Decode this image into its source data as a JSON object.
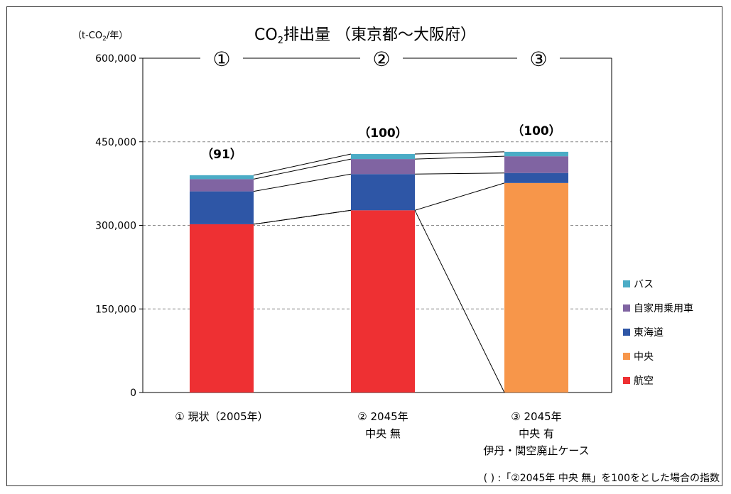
{
  "chart_data": {
    "type": "bar",
    "stacked": true,
    "title_prefix": "CO",
    "title_sub": "2",
    "title_suffix": "排出量 （東京都～大阪府）",
    "unit_prefix": "（t-CO",
    "unit_sub": "2",
    "unit_suffix": "/年）",
    "ylim": [
      0,
      600000
    ],
    "y_ticks": [
      0,
      150000,
      300000,
      450000,
      600000
    ],
    "y_tick_labels": [
      "0",
      "150,000",
      "300,000",
      "450,000",
      "600,000"
    ],
    "grid": true,
    "categories": [
      [
        "① 現状（2005年）"
      ],
      [
        "② 2045年",
        "中央  無"
      ],
      [
        "③ 2045年",
        "中央  有",
        "伊丹・関空廃止ケース"
      ]
    ],
    "column_markers": [
      "①",
      "②",
      "③"
    ],
    "index_labels": [
      "（91）",
      "（100）",
      "（100）"
    ],
    "series": [
      {
        "name": "航空",
        "color": "#ee3033",
        "values": [
          302000,
          327000,
          0
        ]
      },
      {
        "name": "中央",
        "color": "#f7964a",
        "values": [
          0,
          0,
          376000
        ]
      },
      {
        "name": "東海道",
        "color": "#2e56a6",
        "values": [
          59000,
          65000,
          18000
        ]
      },
      {
        "name": "自家用乗用車",
        "color": "#8064a2",
        "values": [
          22000,
          27000,
          30000
        ]
      },
      {
        "name": "バス",
        "color": "#4bacc6",
        "values": [
          7000,
          9000,
          8000
        ]
      }
    ],
    "legend_order": [
      "バス",
      "自家用乗用車",
      "東海道",
      "中央",
      "航空"
    ],
    "legend_position": "right",
    "note": "( ) :「②2045年 中央 無」を100をとした場合の指数"
  }
}
